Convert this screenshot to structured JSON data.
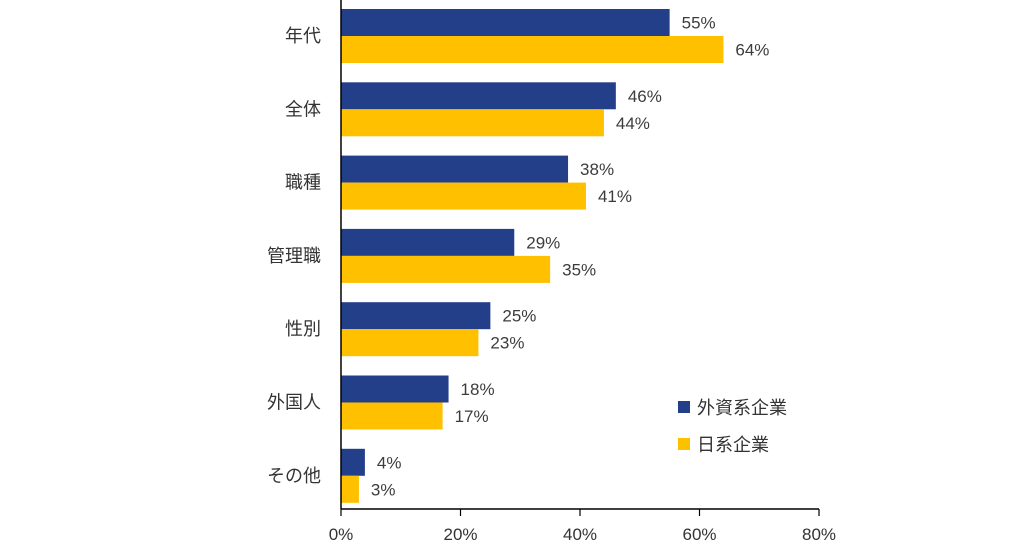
{
  "chart_data": {
    "type": "bar",
    "orientation": "horizontal",
    "categories": [
      "年代",
      "全体",
      "職種",
      "管理職",
      "性別",
      "外国人",
      "その他"
    ],
    "series": [
      {
        "name": "外資系企業",
        "color": "#243f8a",
        "values": [
          55,
          46,
          38,
          29,
          25,
          18,
          4
        ],
        "labels": [
          "55%",
          "46%",
          "38%",
          "29%",
          "25%",
          "18%",
          "4%"
        ]
      },
      {
        "name": "日系企業",
        "color": "#ffc000",
        "values": [
          64,
          44,
          41,
          35,
          23,
          17,
          3
        ],
        "labels": [
          "64%",
          "44%",
          "41%",
          "35%",
          "23%",
          "17%",
          "3%"
        ]
      }
    ],
    "xlim": [
      0,
      80
    ],
    "xticks": [
      0,
      20,
      40,
      60,
      80
    ],
    "xtick_labels": [
      "0%",
      "20%",
      "40%",
      "60%",
      "80%"
    ],
    "grid": false,
    "legend_position": "bottom-right"
  }
}
